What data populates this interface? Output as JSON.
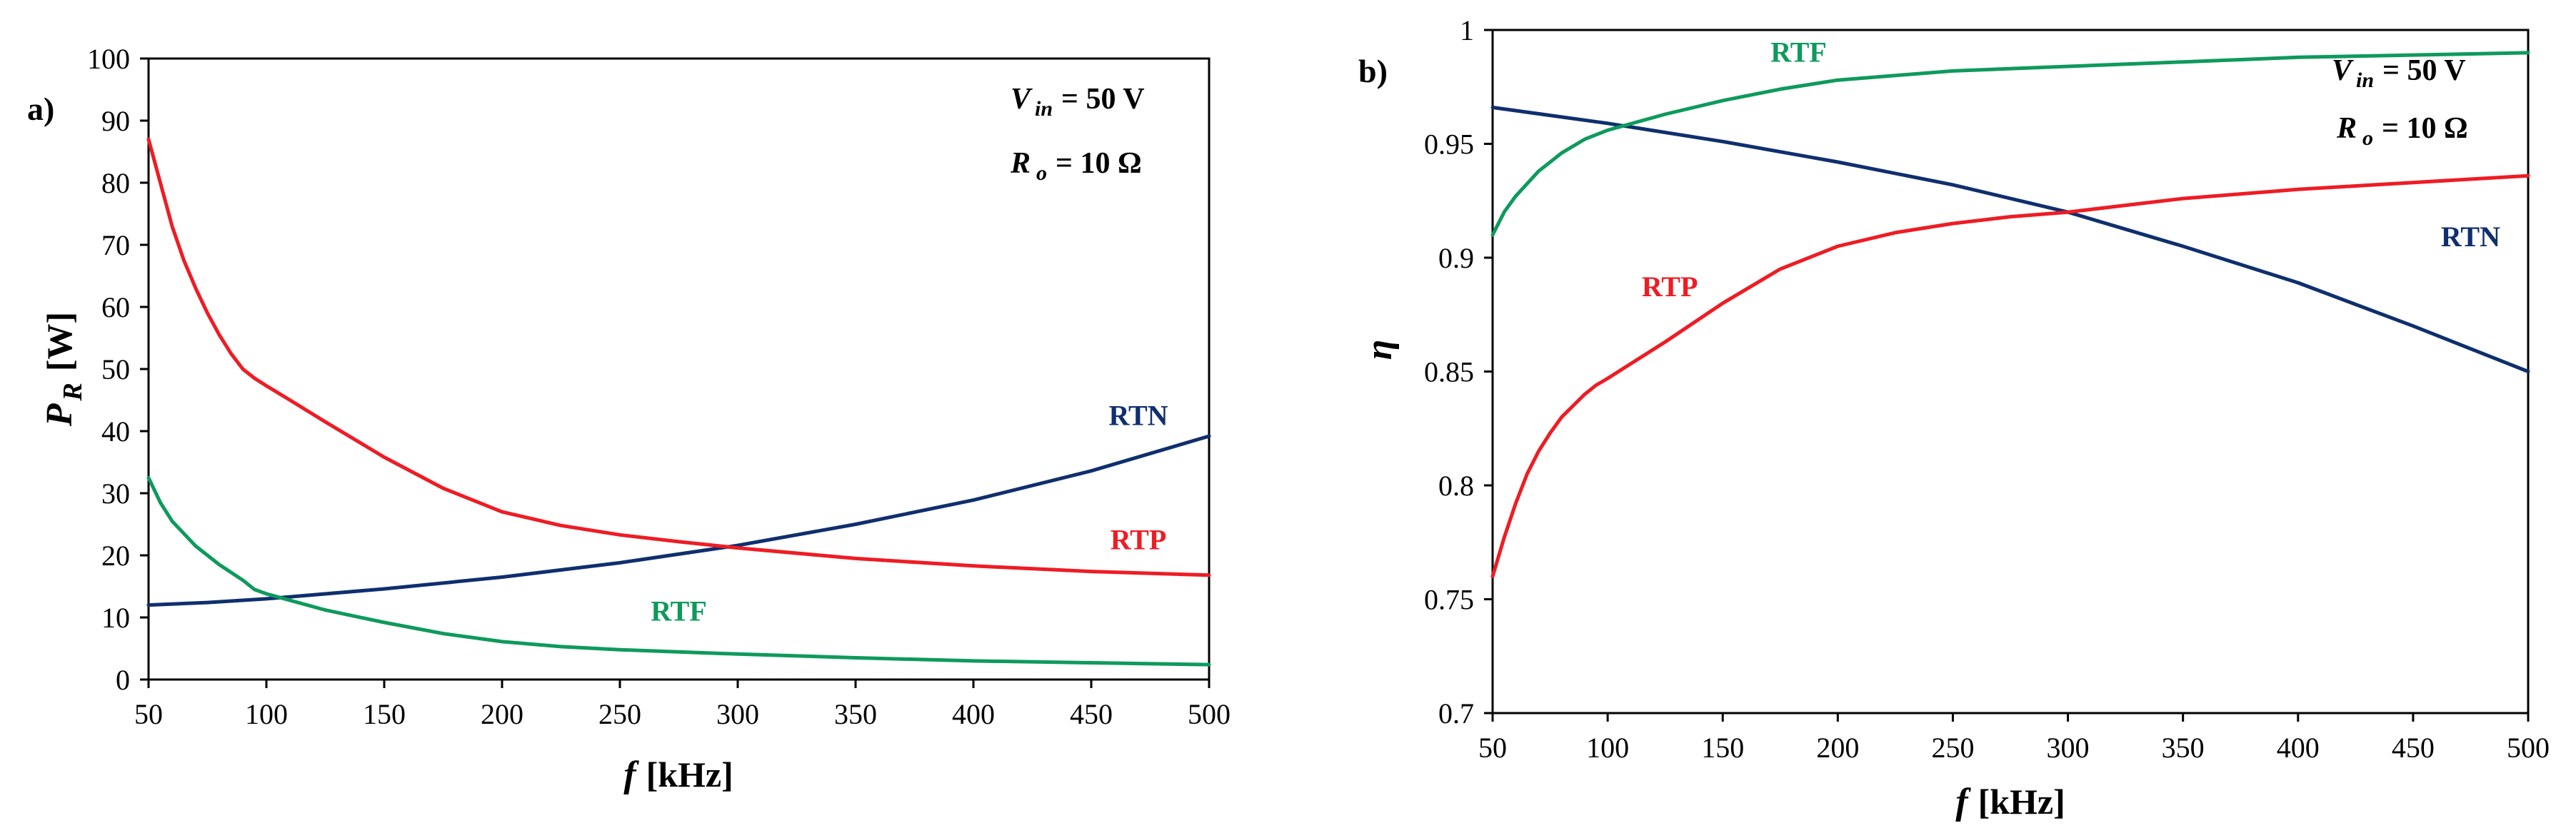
{
  "colors": {
    "RTN": "#0f2f6e",
    "RTP": "#ee1c24",
    "RTF": "#0e9a5c"
  },
  "chart_data": [
    {
      "type": "line",
      "panel": "a)",
      "xlabel_var": "f",
      "xlabel_unit": "[kHz]",
      "ylabel_var": "P",
      "ylabel_sub": "R",
      "ylabel_unit": "[W]",
      "xlim": [
        50,
        500
      ],
      "ylim": [
        0,
        100
      ],
      "x_ticks": [
        50,
        100,
        150,
        200,
        250,
        300,
        350,
        400,
        450,
        500
      ],
      "y_ticks": [
        0,
        10,
        20,
        30,
        40,
        50,
        60,
        70,
        80,
        90,
        100
      ],
      "annotation": {
        "vin_var": "V",
        "vin_sub": "in",
        "vin_value": "= 50 V",
        "ro_var": "R",
        "ro_sub": "o",
        "ro_value": "= 10 Ω"
      },
      "series": [
        {
          "name": "RTN",
          "label_at": [
            470,
            41
          ],
          "x": [
            50,
            75,
            100,
            150,
            200,
            250,
            300,
            350,
            400,
            450,
            500
          ],
          "values": [
            12,
            12.4,
            13,
            14.6,
            16.5,
            18.8,
            21.6,
            25,
            28.9,
            33.6,
            39.2
          ]
        },
        {
          "name": "RTP",
          "label_at": [
            470,
            21
          ],
          "x": [
            50,
            55,
            60,
            65,
            70,
            75,
            80,
            85,
            90,
            95,
            100,
            110,
            125,
            150,
            175,
            200,
            225,
            250,
            275,
            300,
            350,
            400,
            450,
            500
          ],
          "values": [
            87,
            80,
            73,
            67.5,
            63,
            59,
            55.5,
            52.5,
            50,
            48.5,
            47.3,
            45,
            41.5,
            35.8,
            30.8,
            27,
            24.8,
            23.3,
            22.2,
            21.2,
            19.5,
            18.3,
            17.4,
            16.8
          ]
        },
        {
          "name": "RTF",
          "label_at": [
            275,
            9.5
          ],
          "x": [
            50,
            55,
            60,
            70,
            80,
            90,
            95,
            100,
            125,
            150,
            175,
            200,
            225,
            250,
            300,
            350,
            400,
            450,
            500
          ],
          "values": [
            32.5,
            28.5,
            25.5,
            21.5,
            18.5,
            16,
            14.5,
            13.8,
            11.2,
            9.2,
            7.4,
            6.1,
            5.3,
            4.8,
            4.1,
            3.5,
            3,
            2.7,
            2.4
          ]
        }
      ]
    },
    {
      "type": "line",
      "panel": "b)",
      "xlabel_var": "f",
      "xlabel_unit": "[kHz]",
      "ylabel_var": "η",
      "xlim": [
        50,
        500
      ],
      "ylim": [
        0.7,
        1
      ],
      "x_ticks": [
        50,
        100,
        150,
        200,
        250,
        300,
        350,
        400,
        450,
        500
      ],
      "y_ticks": [
        "0.7",
        "0.75",
        "0.8",
        "0.85",
        "0.9",
        "0.95",
        "1"
      ],
      "annotation": {
        "vin_var": "V",
        "vin_sub": "in",
        "vin_value": "= 50 V",
        "ro_var": "R",
        "ro_sub": "o",
        "ro_value": "= 10 Ω"
      },
      "series": [
        {
          "name": "RTN",
          "label_at": [
            475,
            0.905
          ],
          "x": [
            50,
            100,
            150,
            200,
            250,
            300,
            350,
            400,
            450,
            500
          ],
          "values": [
            0.966,
            0.959,
            0.951,
            0.942,
            0.932,
            0.92,
            0.905,
            0.889,
            0.87,
            0.85
          ]
        },
        {
          "name": "RTP",
          "label_at": [
            127,
            0.883
          ],
          "x": [
            50,
            55,
            60,
            65,
            70,
            75,
            80,
            85,
            90,
            95,
            100,
            125,
            150,
            175,
            200,
            225,
            250,
            275,
            300,
            350,
            400,
            450,
            500
          ],
          "values": [
            0.76,
            0.777,
            0.792,
            0.805,
            0.815,
            0.823,
            0.83,
            0.835,
            0.84,
            0.844,
            0.847,
            0.863,
            0.88,
            0.895,
            0.905,
            0.911,
            0.915,
            0.918,
            0.92,
            0.926,
            0.93,
            0.933,
            0.936
          ]
        },
        {
          "name": "RTF",
          "label_at": [
            183,
            0.986
          ],
          "x": [
            50,
            55,
            60,
            70,
            80,
            90,
            100,
            125,
            150,
            175,
            200,
            225,
            250,
            300,
            350,
            400,
            450,
            500
          ],
          "values": [
            0.91,
            0.92,
            0.927,
            0.938,
            0.946,
            0.952,
            0.956,
            0.963,
            0.969,
            0.974,
            0.978,
            0.98,
            0.982,
            0.984,
            0.986,
            0.988,
            0.989,
            0.99
          ]
        }
      ]
    }
  ]
}
